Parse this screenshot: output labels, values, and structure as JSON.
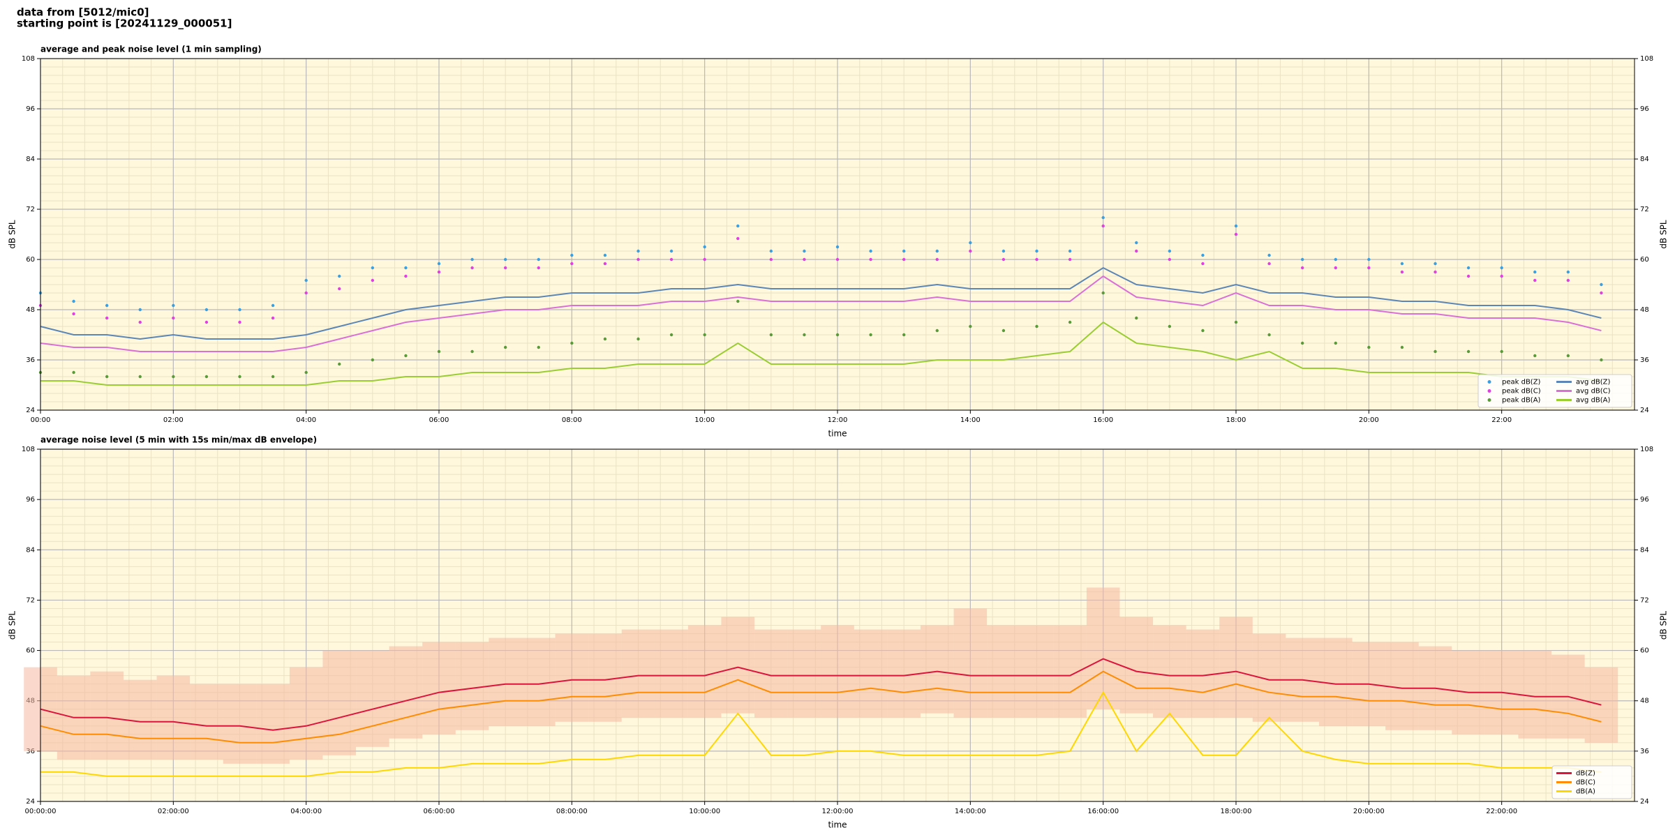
{
  "header": {
    "line1": "data from [5012/mic0]",
    "line2": "starting point is [20241129_000051]"
  },
  "chart_data": [
    {
      "type": "line",
      "title": "average and peak noise level (1 min sampling)",
      "xlabel": "time",
      "ylabel": "dB SPL",
      "background": "#fff8dc",
      "grid": true,
      "legend": "lower right",
      "xlim": [
        0,
        24
      ],
      "ylim": [
        24,
        108
      ],
      "xticks": [
        {
          "value": 0,
          "label": "00:00"
        },
        {
          "value": 2,
          "label": "02:00"
        },
        {
          "value": 4,
          "label": "04:00"
        },
        {
          "value": 6,
          "label": "06:00"
        },
        {
          "value": 8,
          "label": "08:00"
        },
        {
          "value": 10,
          "label": "10:00"
        },
        {
          "value": 12,
          "label": "12:00"
        },
        {
          "value": 14,
          "label": "14:00"
        },
        {
          "value": 16,
          "label": "16:00"
        },
        {
          "value": 18,
          "label": "18:00"
        },
        {
          "value": 20,
          "label": "20:00"
        },
        {
          "value": 22,
          "label": "22:00"
        }
      ],
      "yticks": [
        24,
        36,
        48,
        60,
        72,
        84,
        96,
        108
      ],
      "x": [
        0,
        0.5,
        1,
        1.5,
        2,
        2.5,
        3,
        3.5,
        4,
        4.5,
        5,
        5.5,
        6,
        6.5,
        7,
        7.5,
        8,
        8.5,
        9,
        9.5,
        10,
        10.5,
        11,
        11.5,
        12,
        12.5,
        13,
        13.5,
        14,
        14.5,
        15,
        15.5,
        16,
        16.5,
        17,
        17.5,
        18,
        18.5,
        19,
        19.5,
        20,
        20.5,
        21,
        21.5,
        22,
        22.5,
        23,
        23.5
      ],
      "series": [
        {
          "name": "peak dB(Z)",
          "style": "points",
          "color": "#3b9fe0",
          "values": [
            52,
            50,
            49,
            48,
            49,
            48,
            48,
            49,
            55,
            56,
            58,
            58,
            59,
            60,
            60,
            60,
            61,
            61,
            62,
            62,
            63,
            68,
            62,
            62,
            63,
            62,
            62,
            62,
            64,
            62,
            62,
            62,
            70,
            64,
            62,
            61,
            68,
            61,
            60,
            60,
            60,
            59,
            59,
            58,
            58,
            57,
            57,
            54
          ]
        },
        {
          "name": "peak dB(C)",
          "style": "points",
          "color": "#e040e0",
          "values": [
            49,
            47,
            46,
            45,
            46,
            45,
            45,
            46,
            52,
            53,
            55,
            56,
            57,
            58,
            58,
            58,
            59,
            59,
            60,
            60,
            60,
            65,
            60,
            60,
            60,
            60,
            60,
            60,
            62,
            60,
            60,
            60,
            68,
            62,
            60,
            59,
            66,
            59,
            58,
            58,
            58,
            57,
            57,
            56,
            56,
            55,
            55,
            52
          ]
        },
        {
          "name": "peak dB(A)",
          "style": "points",
          "color": "#5a9a3a",
          "values": [
            33,
            33,
            32,
            32,
            32,
            32,
            32,
            32,
            33,
            35,
            36,
            37,
            38,
            38,
            39,
            39,
            40,
            41,
            41,
            42,
            42,
            50,
            42,
            42,
            42,
            42,
            42,
            43,
            44,
            43,
            44,
            45,
            52,
            46,
            44,
            43,
            45,
            42,
            40,
            40,
            39,
            39,
            38,
            38,
            38,
            37,
            37,
            36
          ]
        },
        {
          "name": "avg dB(Z)",
          "style": "line",
          "color": "#5b86b5",
          "values": [
            44,
            42,
            42,
            41,
            42,
            41,
            41,
            41,
            42,
            44,
            46,
            48,
            49,
            50,
            51,
            51,
            52,
            52,
            52,
            53,
            53,
            54,
            53,
            53,
            53,
            53,
            53,
            54,
            53,
            53,
            53,
            53,
            58,
            54,
            53,
            52,
            54,
            52,
            52,
            51,
            51,
            50,
            50,
            49,
            49,
            49,
            48,
            46
          ]
        },
        {
          "name": "avg dB(C)",
          "style": "line",
          "color": "#da70d6",
          "values": [
            40,
            39,
            39,
            38,
            38,
            38,
            38,
            38,
            39,
            41,
            43,
            45,
            46,
            47,
            48,
            48,
            49,
            49,
            49,
            50,
            50,
            51,
            50,
            50,
            50,
            50,
            50,
            51,
            50,
            50,
            50,
            50,
            56,
            51,
            50,
            49,
            52,
            49,
            49,
            48,
            48,
            47,
            47,
            46,
            46,
            46,
            45,
            43
          ]
        },
        {
          "name": "avg dB(A)",
          "style": "line",
          "color": "#9acd32",
          "values": [
            31,
            31,
            30,
            30,
            30,
            30,
            30,
            30,
            30,
            31,
            31,
            32,
            32,
            33,
            33,
            33,
            34,
            34,
            35,
            35,
            35,
            40,
            35,
            35,
            35,
            35,
            35,
            36,
            36,
            36,
            37,
            38,
            45,
            40,
            39,
            38,
            36,
            38,
            34,
            34,
            33,
            33,
            33,
            33,
            32,
            32,
            32,
            31
          ]
        }
      ]
    },
    {
      "type": "line",
      "title": "average noise level (5 min with 15s min/max dB envelope)",
      "xlabel": "time",
      "ylabel": "dB SPL",
      "background": "#fff8dc",
      "grid": true,
      "legend": "lower right",
      "xlim": [
        0,
        24
      ],
      "ylim": [
        24,
        108
      ],
      "xticks": [
        {
          "value": 0,
          "label": "00:00:00"
        },
        {
          "value": 2,
          "label": "02:00:00"
        },
        {
          "value": 4,
          "label": "04:00:00"
        },
        {
          "value": 6,
          "label": "06:00:00"
        },
        {
          "value": 8,
          "label": "08:00:00"
        },
        {
          "value": 10,
          "label": "10:00:00"
        },
        {
          "value": 12,
          "label": "12:00:00"
        },
        {
          "value": 14,
          "label": "14:00:00"
        },
        {
          "value": 16,
          "label": "16:00:00"
        },
        {
          "value": 18,
          "label": "18:00:00"
        },
        {
          "value": 20,
          "label": "20:00:00"
        },
        {
          "value": 22,
          "label": "22:00:00"
        }
      ],
      "yticks": [
        24,
        36,
        48,
        60,
        72,
        84,
        96,
        108
      ],
      "x": [
        0,
        0.5,
        1,
        1.5,
        2,
        2.5,
        3,
        3.5,
        4,
        4.5,
        5,
        5.5,
        6,
        6.5,
        7,
        7.5,
        8,
        8.5,
        9,
        9.5,
        10,
        10.5,
        11,
        11.5,
        12,
        12.5,
        13,
        13.5,
        14,
        14.5,
        15,
        15.5,
        16,
        16.5,
        17,
        17.5,
        18,
        18.5,
        19,
        19.5,
        20,
        20.5,
        21,
        21.5,
        22,
        22.5,
        23,
        23.5
      ],
      "envelope": {
        "color": "#f5b8a0",
        "min": [
          36,
          34,
          34,
          34,
          34,
          34,
          33,
          33,
          34,
          35,
          37,
          39,
          40,
          41,
          42,
          42,
          43,
          43,
          44,
          44,
          44,
          45,
          44,
          44,
          44,
          44,
          44,
          45,
          44,
          44,
          44,
          44,
          46,
          45,
          44,
          44,
          44,
          43,
          43,
          42,
          42,
          41,
          41,
          40,
          40,
          39,
          39,
          38
        ],
        "max": [
          56,
          54,
          55,
          53,
          54,
          52,
          52,
          52,
          56,
          60,
          60,
          61,
          62,
          62,
          63,
          63,
          64,
          64,
          65,
          65,
          66,
          68,
          65,
          65,
          66,
          65,
          65,
          66,
          70,
          66,
          66,
          66,
          75,
          68,
          66,
          65,
          68,
          64,
          63,
          63,
          62,
          62,
          61,
          60,
          60,
          60,
          59,
          56
        ]
      },
      "series": [
        {
          "name": "dB(Z)",
          "style": "line",
          "color": "#dc143c",
          "values": [
            46,
            44,
            44,
            43,
            43,
            42,
            42,
            41,
            42,
            44,
            46,
            48,
            50,
            51,
            52,
            52,
            53,
            53,
            54,
            54,
            54,
            56,
            54,
            54,
            54,
            54,
            54,
            55,
            54,
            54,
            54,
            54,
            58,
            55,
            54,
            54,
            55,
            53,
            53,
            52,
            52,
            51,
            51,
            50,
            50,
            49,
            49,
            47
          ]
        },
        {
          "name": "dB(C)",
          "style": "line",
          "color": "#ff8c00",
          "values": [
            42,
            40,
            40,
            39,
            39,
            39,
            38,
            38,
            39,
            40,
            42,
            44,
            46,
            47,
            48,
            48,
            49,
            49,
            50,
            50,
            50,
            53,
            50,
            50,
            50,
            51,
            50,
            51,
            50,
            50,
            50,
            50,
            55,
            51,
            51,
            50,
            52,
            50,
            49,
            49,
            48,
            48,
            47,
            47,
            46,
            46,
            45,
            43
          ]
        },
        {
          "name": "dB(A)",
          "style": "line",
          "color": "#ffd700",
          "values": [
            31,
            31,
            30,
            30,
            30,
            30,
            30,
            30,
            30,
            31,
            31,
            32,
            32,
            33,
            33,
            33,
            34,
            34,
            35,
            35,
            35,
            45,
            35,
            35,
            36,
            36,
            35,
            35,
            35,
            35,
            35,
            36,
            50,
            36,
            45,
            35,
            35,
            44,
            36,
            34,
            33,
            33,
            33,
            33,
            32,
            32,
            32,
            31
          ]
        }
      ]
    }
  ]
}
